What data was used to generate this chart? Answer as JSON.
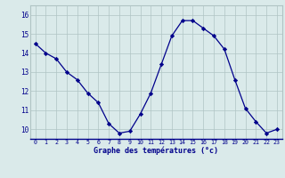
{
  "hours": [
    0,
    1,
    2,
    3,
    4,
    5,
    6,
    7,
    8,
    9,
    10,
    11,
    12,
    13,
    14,
    15,
    16,
    17,
    18,
    19,
    20,
    21,
    22,
    23
  ],
  "temps": [
    14.5,
    14.0,
    13.7,
    13.0,
    12.6,
    11.9,
    11.4,
    10.3,
    9.8,
    9.9,
    10.8,
    11.9,
    13.4,
    14.9,
    15.7,
    15.7,
    15.3,
    14.9,
    14.2,
    12.6,
    11.1,
    10.4,
    9.8,
    10.0
  ],
  "bg_color": "#daeaea",
  "line_color": "#00008b",
  "marker_color": "#00008b",
  "grid_color": "#b0c4c4",
  "ylabel_ticks": [
    10,
    11,
    12,
    13,
    14,
    15,
    16
  ],
  "xlabel": "Graphe des températures (°c)",
  "xlim": [
    -0.5,
    23.5
  ],
  "ylim": [
    9.5,
    16.5
  ],
  "title": ""
}
